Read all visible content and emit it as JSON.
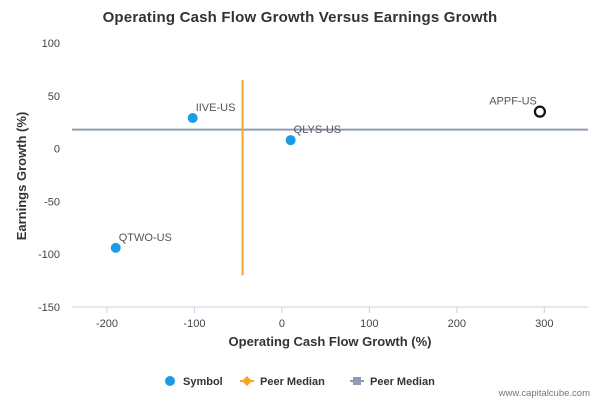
{
  "chart_data": {
    "type": "scatter",
    "title": "Operating Cash Flow Growth Versus Earnings Growth",
    "xlabel": "Operating Cash Flow Growth (%)",
    "ylabel": "Earnings Growth (%)",
    "xlim": [
      -240,
      350
    ],
    "ylim": [
      -150,
      100
    ],
    "x_ticks": [
      -200,
      -100,
      0,
      100,
      200,
      300
    ],
    "y_ticks": [
      100,
      50,
      0,
      -50,
      -100,
      -150
    ],
    "grid": false,
    "legend_position": "bottom",
    "points": [
      {
        "label": "IIVE-US",
        "x": -102,
        "y": 29,
        "style": "filled",
        "color": "#1a9be6"
      },
      {
        "label": "QLYS-US",
        "x": 10,
        "y": 8,
        "style": "filled",
        "color": "#1a9be6"
      },
      {
        "label": "QTWO-US",
        "x": -190,
        "y": -94,
        "style": "filled",
        "color": "#1a9be6"
      },
      {
        "label": "APPF-US",
        "x": 295,
        "y": 35,
        "style": "hollow",
        "color": "#111111"
      }
    ],
    "peer_median_x": {
      "value": -45,
      "y_range": [
        -120,
        65
      ],
      "color": "#f5a623"
    },
    "peer_median_y": {
      "value": 18,
      "color": "#8f9bb0"
    },
    "legend": [
      {
        "label": "Symbol",
        "marker": "circle",
        "color": "#1a9be6"
      },
      {
        "label": "Peer Median",
        "marker": "diamond-line",
        "color": "#f5a623"
      },
      {
        "label": "Peer Median",
        "marker": "square-line",
        "color": "#8f9bb0"
      }
    ]
  },
  "credit": "www.capitalcube.com"
}
